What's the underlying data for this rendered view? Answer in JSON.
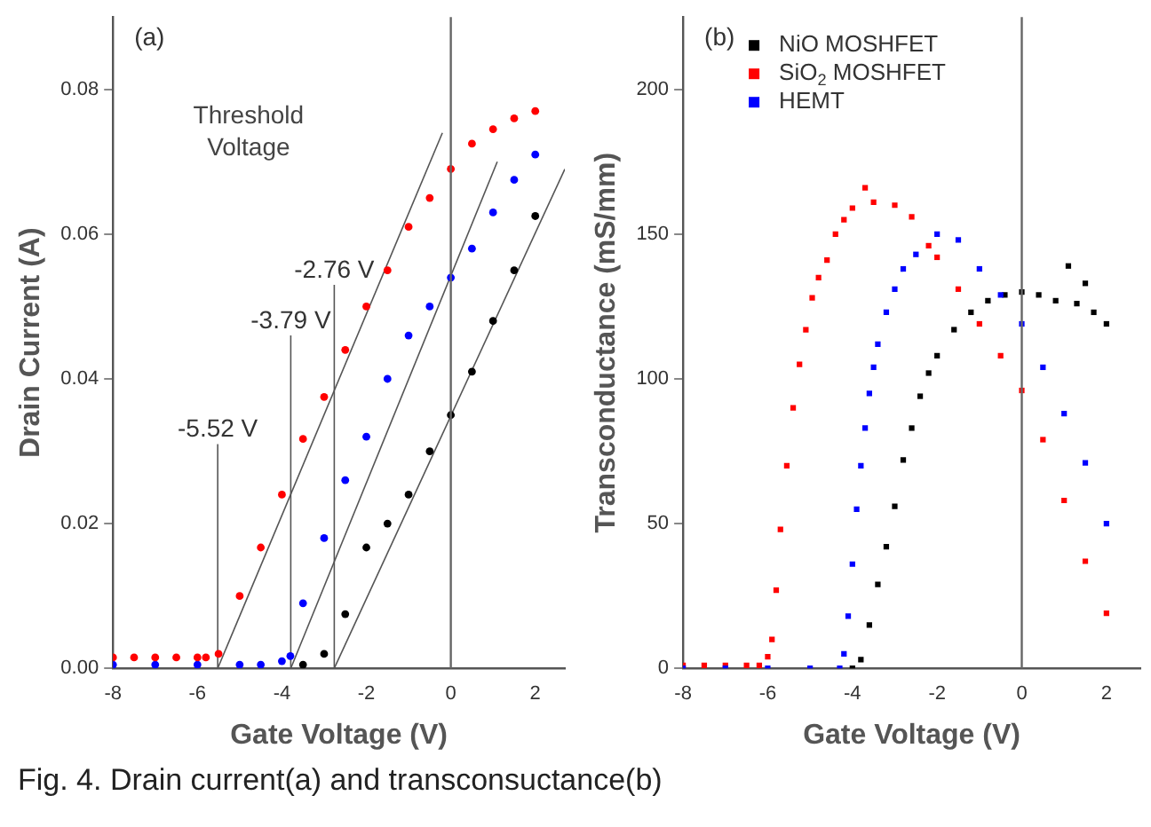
{
  "chart_data": [
    {
      "type": "scatter",
      "title": "(a)",
      "xlabel": "Gate Voltage (V)",
      "ylabel": "Drain Current (A)",
      "xlim": [
        -8,
        2.7
      ],
      "xticks": [
        -8,
        -6,
        -4,
        -2,
        0,
        2
      ],
      "ylim": [
        0,
        0.09
      ],
      "yticks": [
        {
          "value": 0,
          "label": "0.00"
        },
        {
          "value": 0.02,
          "label": "0.02"
        },
        {
          "value": 0.04,
          "label": "0.04"
        },
        {
          "value": 0.06,
          "label": "0.06"
        },
        {
          "value": 0.08,
          "label": "0.08"
        }
      ],
      "grid": false,
      "legend": false,
      "ref_lines": [
        {
          "axis": "x",
          "value": 0,
          "color": "#666666"
        }
      ],
      "annotations": [
        "Threshold Voltage",
        "-5.52 V",
        "-3.79 V",
        "-2.76 V"
      ],
      "series": [
        {
          "color": "#000000",
          "x": [
            -3.5,
            -3,
            -2.5,
            -2,
            -1.5,
            -1,
            -0.5,
            0,
            0.5,
            1,
            1.5,
            2
          ],
          "values": [
            0.0005,
            0.002,
            0.0075,
            0.0167,
            0.02,
            0.024,
            0.03,
            0.035,
            0.041,
            0.048,
            0.055,
            0.0625
          ]
        },
        {
          "color": "#0000ff",
          "x": [
            -8,
            -7,
            -6,
            -5,
            -4.5,
            -4,
            -3.8,
            -3.5,
            -3,
            -2.5,
            -2,
            -1.5,
            -1,
            -0.5,
            0,
            0.5,
            1,
            1.5,
            2
          ],
          "values": [
            0.0005,
            0.0005,
            0.0005,
            0.0005,
            0.0005,
            0.001,
            0.0017,
            0.009,
            0.018,
            0.026,
            0.032,
            0.04,
            0.046,
            0.05,
            0.054,
            0.058,
            0.063,
            0.0675,
            0.071
          ]
        },
        {
          "color": "#ff0000",
          "x": [
            -8,
            -7.5,
            -7,
            -6.5,
            -6,
            -5.8,
            -5.5,
            -5,
            -4.5,
            -4,
            -3.5,
            -3,
            -2.5,
            -2,
            -1.5,
            -1,
            -0.5,
            0,
            0.5,
            1,
            1.5,
            2
          ],
          "values": [
            0.0015,
            0.0015,
            0.0015,
            0.0015,
            0.0015,
            0.0015,
            0.002,
            0.01,
            0.0167,
            0.024,
            0.0317,
            0.0375,
            0.044,
            0.05,
            0.055,
            0.061,
            0.065,
            0.069,
            0.0725,
            0.0745,
            0.076,
            0.077
          ]
        },
        {
          "type": "line",
          "color": "#555555",
          "x": [
            -5.52,
            -0.2
          ],
          "values": [
            0,
            0.074
          ]
        },
        {
          "type": "line",
          "color": "#555555",
          "x": [
            -3.79,
            1.1
          ],
          "values": [
            0,
            0.07
          ]
        },
        {
          "type": "line",
          "color": "#555555",
          "x": [
            -2.76,
            2.7
          ],
          "values": [
            0,
            0.069
          ]
        },
        {
          "type": "line",
          "color": "#555555",
          "x": [
            -5.52,
            -5.52
          ],
          "values": [
            0,
            0.031
          ]
        },
        {
          "type": "line",
          "color": "#555555",
          "x": [
            -3.79,
            -3.79
          ],
          "values": [
            0,
            0.046
          ]
        },
        {
          "type": "line",
          "color": "#555555",
          "x": [
            -2.76,
            -2.76
          ],
          "values": [
            0,
            0.053
          ]
        }
      ]
    },
    {
      "type": "scatter",
      "title": "(b)",
      "xlabel": "Gate Voltage (V)",
      "ylabel": "Transconductance (mS/mm)",
      "xlim": [
        -8,
        2.8
      ],
      "xticks": [
        -8,
        -6,
        -4,
        -2,
        0,
        2
      ],
      "ylim": [
        0,
        225
      ],
      "yticks": [
        0,
        50,
        100,
        150,
        200
      ],
      "grid": false,
      "legend": "top left",
      "marker": "square",
      "ref_lines": [
        {
          "axis": "x",
          "value": 0,
          "color": "#666666"
        }
      ],
      "annotations": [
        "Fig. 4. Drain current(a) and transconsuctance(b)"
      ],
      "series": [
        {
          "name": "NiO MOSHFET",
          "color": "#000000",
          "x": [
            -4,
            -3.8,
            -3.6,
            -3.4,
            -3.2,
            -3,
            -2.8,
            -2.6,
            -2.4,
            -2.2,
            -2,
            -1.6,
            -1.2,
            -0.8,
            -0.4,
            0,
            0.4,
            0.8,
            1.1,
            1.3,
            1.5,
            1.7,
            2
          ],
          "values": [
            0,
            3,
            15,
            29,
            42,
            56,
            72,
            83,
            94,
            102,
            108,
            117,
            123,
            127,
            129,
            130,
            129,
            127,
            139,
            126,
            133,
            123,
            119
          ]
        },
        {
          "name": "SiO$_{2}$ MOSHFET",
          "color": "#ff0000",
          "x": [
            -8,
            -7.5,
            -7,
            -6.5,
            -6.2,
            -6,
            -5.9,
            -5.8,
            -5.7,
            -5.55,
            -5.4,
            -5.25,
            -5.1,
            -4.95,
            -4.8,
            -4.6,
            -4.4,
            -4.2,
            -4,
            -3.7,
            -3.5,
            -3,
            -2.6,
            -2.2,
            -2,
            -1.5,
            -1,
            -0.5,
            0,
            0.5,
            1,
            1.5,
            2
          ],
          "values": [
            1,
            1,
            1,
            1,
            1,
            4,
            10,
            27,
            48,
            70,
            90,
            105,
            117,
            128,
            135,
            141,
            150,
            155,
            159,
            166,
            161,
            160,
            156,
            146,
            142,
            131,
            119,
            108,
            96,
            79,
            58,
            37,
            19
          ]
        },
        {
          "name": "HEMT",
          "color": "#0000ff",
          "x": [
            -8,
            -7,
            -6,
            -5,
            -4.3,
            -4.2,
            -4.1,
            -4,
            -3.9,
            -3.8,
            -3.7,
            -3.6,
            -3.5,
            -3.4,
            -3.2,
            -3,
            -2.8,
            -2.5,
            -2,
            -1.5,
            -1,
            -0.5,
            0,
            0.5,
            1,
            1.5,
            2
          ],
          "values": [
            0,
            0,
            0,
            0,
            0,
            5,
            18,
            36,
            55,
            70,
            83,
            95,
            104,
            112,
            123,
            131,
            138,
            143,
            150,
            148,
            138,
            129,
            119,
            104,
            88,
            71,
            50
          ]
        }
      ]
    }
  ]
}
